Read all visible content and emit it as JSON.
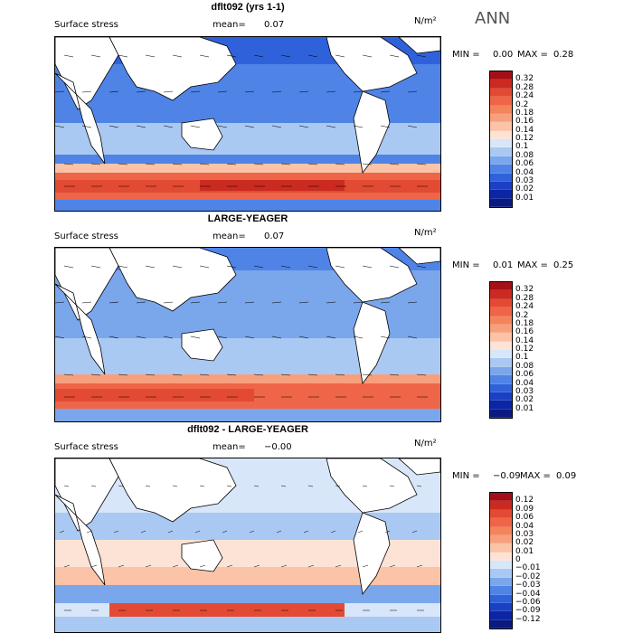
{
  "season": "ANN",
  "panels": [
    {
      "title": "dflt092 (yrs 1-1)",
      "field": "Surface stress",
      "mean_label": "mean=",
      "mean_value": "0.07",
      "units": "N/m²",
      "min_label": "MIN =",
      "min_value": "0.00",
      "max_label": "MAX =",
      "max_value": "0.28",
      "colorbar": {
        "labels": [
          "0.32",
          "0.28",
          "0.24",
          "0.2",
          "0.18",
          "0.16",
          "0.14",
          "0.12",
          "0.1",
          "0.08",
          "0.06",
          "0.04",
          "0.03",
          "0.02",
          "0.01"
        ],
        "colors": [
          "#a50f15",
          "#cb2a20",
          "#e34a33",
          "#ef6548",
          "#f4845c",
          "#f8a07d",
          "#fbc3a8",
          "#fde3d6",
          "#d7e6f8",
          "#a9c9f2",
          "#7aa6ec",
          "#4f84e6",
          "#2f62da",
          "#1b40c4",
          "#0c26a3",
          "#0a1a80"
        ]
      }
    },
    {
      "title": "LARGE-YEAGER",
      "field": "Surface stress",
      "mean_label": "mean=",
      "mean_value": "0.07",
      "units": "N/m²",
      "min_label": "MIN =",
      "min_value": "0.01",
      "max_label": "MAX =",
      "max_value": "0.25",
      "colorbar": {
        "labels": [
          "0.32",
          "0.28",
          "0.24",
          "0.2",
          "0.18",
          "0.16",
          "0.14",
          "0.12",
          "0.1",
          "0.08",
          "0.06",
          "0.04",
          "0.03",
          "0.02",
          "0.01"
        ],
        "colors": [
          "#a50f15",
          "#cb2a20",
          "#e34a33",
          "#ef6548",
          "#f4845c",
          "#f8a07d",
          "#fbc3a8",
          "#fde3d6",
          "#d7e6f8",
          "#a9c9f2",
          "#7aa6ec",
          "#4f84e6",
          "#2f62da",
          "#1b40c4",
          "#0c26a3",
          "#0a1a80"
        ]
      }
    },
    {
      "title": "dflt092 - LARGE-YEAGER",
      "field": "Surface stress",
      "mean_label": "mean=",
      "mean_value": "−0.00",
      "units": "N/m²",
      "min_label": "MIN =",
      "min_value": "−0.09",
      "max_label": "MAX =",
      "max_value": "0.09",
      "colorbar": {
        "labels": [
          "0.12",
          "0.09",
          "0.06",
          "0.04",
          "0.03",
          "0.02",
          "0.01",
          "0",
          "−0.01",
          "−0.02",
          "−0.03",
          "−0.04",
          "−0.06",
          "−0.09",
          "−0.12"
        ],
        "colors": [
          "#a50f15",
          "#cb2a20",
          "#e34a33",
          "#ef6548",
          "#f4845c",
          "#f8a07d",
          "#fbc3a8",
          "#fde3d6",
          "#d7e6f8",
          "#a9c9f2",
          "#7aa6ec",
          "#4f84e6",
          "#2f62da",
          "#1b40c4",
          "#0c26a3",
          "#0a1a80"
        ]
      }
    }
  ]
}
